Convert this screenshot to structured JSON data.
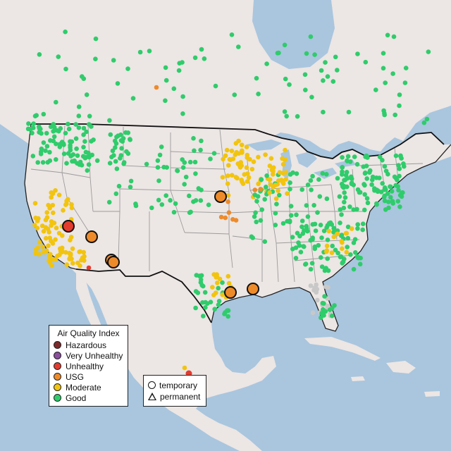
{
  "colors": {
    "water": "#a9c6de",
    "land": "#ece6e4",
    "land_alt": "#e3dcd9",
    "border": "#111111",
    "state_line": "#9c9c9c",
    "hazardous": "#7e2a2a",
    "very_unhealthy": "#8b4f9e",
    "unhealthy": "#e33b2e",
    "usg": "#ed8b2b",
    "moderate": "#f2c40f",
    "good": "#2fcc6b",
    "no_data": "#c8c8c8"
  },
  "legend": {
    "title": "Air Quality Index",
    "items": [
      {
        "label": "Hazardous",
        "color": "#7e2a2a"
      },
      {
        "label": "Very Unhealthy",
        "color": "#8b4f9e"
      },
      {
        "label": "Unhealthy",
        "color": "#e33b2e"
      },
      {
        "label": "USG",
        "color": "#ed8b2b"
      },
      {
        "label": "Moderate",
        "color": "#f2c40f"
      },
      {
        "label": "Good",
        "color": "#2fcc6b"
      }
    ]
  },
  "type_legend": {
    "items": [
      {
        "label": "temporary",
        "shape": "circle"
      },
      {
        "label": "permanent",
        "shape": "triangle"
      }
    ]
  }
}
